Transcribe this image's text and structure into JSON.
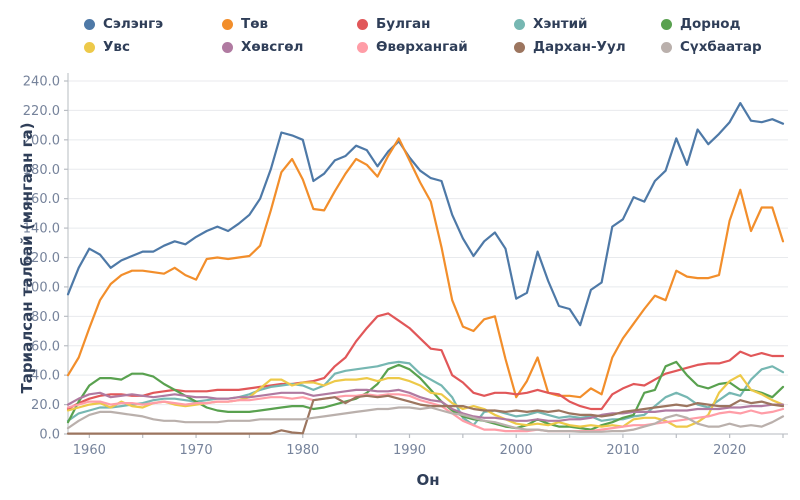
{
  "axes": {
    "y_title": "Тариалсан талбай (мянгаан га)",
    "x_title": "Он"
  },
  "style": {
    "grid_color": "#e8eaed",
    "spine_color": "#c3c7cc",
    "tick_color": "#b9bdc3",
    "tick_label_color": "#76839b",
    "text_color": "#2f3e58",
    "background": "#ffffff",
    "line_width": 2.2
  },
  "chart_data": {
    "type": "line",
    "title": "",
    "xlabel": "Он",
    "ylabel": "Тариалсан талбай (мянгаан га)",
    "x_range": [
      1958,
      2025
    ],
    "ylim": [
      0,
      240
    ],
    "x_major_ticks": [
      1960,
      1970,
      1980,
      1990,
      2000,
      2010,
      2020
    ],
    "x_minor_tick_step": 5,
    "y_ticks": [
      0,
      20,
      40,
      60,
      80,
      100,
      120,
      140,
      160,
      180,
      200,
      220,
      240
    ],
    "y_tick_labels": [
      "0.0",
      "20.0",
      "40.0",
      "60.0",
      "80.0",
      "100.0",
      "120.0",
      "140.0",
      "160.0",
      "180.0",
      "200.0",
      "220.0",
      "240.0"
    ],
    "grid": "horizontal",
    "legend_position": "top",
    "x": [
      1958,
      1959,
      1960,
      1961,
      1962,
      1963,
      1964,
      1965,
      1966,
      1967,
      1968,
      1969,
      1970,
      1971,
      1972,
      1973,
      1974,
      1975,
      1976,
      1977,
      1978,
      1979,
      1980,
      1981,
      1982,
      1983,
      1984,
      1985,
      1986,
      1987,
      1988,
      1989,
      1990,
      1991,
      1992,
      1993,
      1994,
      1995,
      1996,
      1997,
      1998,
      1999,
      2000,
      2001,
      2002,
      2003,
      2004,
      2005,
      2006,
      2007,
      2008,
      2009,
      2010,
      2011,
      2012,
      2013,
      2014,
      2015,
      2016,
      2017,
      2018,
      2019,
      2020,
      2021,
      2022,
      2023,
      2024,
      2025
    ],
    "series": [
      {
        "key": "selenge",
        "name": "Сэлэнгэ",
        "color": "#4E79A7",
        "values": [
          95,
          113,
          126,
          122,
          113,
          118,
          121,
          124,
          124,
          128,
          131,
          129,
          134,
          138,
          141,
          138,
          143,
          149,
          160,
          180,
          205,
          203,
          200,
          172,
          177,
          186,
          189,
          196,
          193,
          182,
          192,
          199,
          188,
          179,
          174,
          172,
          149,
          133,
          121,
          131,
          137,
          126,
          92,
          96,
          124,
          104,
          87,
          85,
          74,
          98,
          103,
          141,
          146,
          161,
          158,
          172,
          179,
          201,
          183,
          207,
          197,
          204,
          212,
          225,
          213,
          212,
          214,
          211
        ]
      },
      {
        "key": "tov",
        "name": "Төв",
        "color": "#F28E2B",
        "values": [
          40,
          52,
          72,
          91,
          102,
          108,
          111,
          111,
          110,
          109,
          113,
          108,
          105,
          119,
          120,
          119,
          120,
          121,
          128,
          152,
          178,
          187,
          173,
          153,
          152,
          165,
          177,
          187,
          183,
          175,
          189,
          201,
          186,
          171,
          158,
          127,
          91,
          73,
          70,
          78,
          80,
          51,
          25,
          36,
          52,
          28,
          26,
          26,
          25,
          31,
          27,
          52,
          65,
          75,
          85,
          94,
          91,
          111,
          107,
          106,
          106,
          108,
          145,
          166,
          138,
          154,
          154,
          131
        ]
      },
      {
        "key": "bulgan",
        "name": "Булган",
        "color": "#E15759",
        "values": [
          17,
          21,
          24,
          26,
          27,
          27,
          26,
          26,
          28,
          29,
          30,
          29,
          29,
          29,
          30,
          30,
          30,
          31,
          32,
          33,
          34,
          34,
          35,
          36,
          38,
          46,
          52,
          63,
          72,
          80,
          82,
          77,
          72,
          65,
          58,
          57,
          40,
          35,
          28,
          26,
          28,
          28,
          27,
          28,
          30,
          28,
          27,
          22,
          19,
          17,
          17,
          27,
          31,
          34,
          33,
          37,
          41,
          43,
          45,
          47,
          48,
          48,
          50,
          56,
          53,
          55,
          53,
          53
        ]
      },
      {
        "key": "khentii",
        "name": "Хэнтий",
        "color": "#76B7B2",
        "values": [
          9,
          14,
          16,
          18,
          18,
          19,
          20,
          21,
          23,
          24,
          24,
          23,
          22,
          23,
          24,
          24,
          25,
          27,
          30,
          32,
          33,
          34,
          33,
          30,
          33,
          41,
          43,
          44,
          45,
          46,
          48,
          49,
          48,
          41,
          37,
          33,
          25,
          11,
          6,
          15,
          16,
          14,
          12,
          13,
          15,
          13,
          11,
          12,
          11,
          12,
          9,
          10,
          10,
          12,
          13,
          19,
          25,
          28,
          25,
          20,
          18,
          23,
          28,
          26,
          37,
          44,
          46,
          42
        ]
      },
      {
        "key": "dornod",
        "name": "Дорнод",
        "color": "#59A14F",
        "values": [
          8,
          22,
          33,
          38,
          38,
          37,
          41,
          41,
          39,
          34,
          30,
          26,
          22,
          18,
          16,
          15,
          15,
          15,
          16,
          17,
          18,
          19,
          19,
          17,
          18,
          20,
          22,
          24,
          28,
          34,
          44,
          47,
          44,
          38,
          30,
          22,
          16,
          12,
          10,
          9,
          7,
          5,
          4,
          6,
          10,
          7,
          5,
          5,
          4,
          3,
          6,
          8,
          11,
          13,
          28,
          30,
          46,
          49,
          40,
          33,
          31,
          34,
          35,
          30,
          30,
          28,
          25,
          32
        ]
      },
      {
        "key": "uvs",
        "name": "Увс",
        "color": "#EDC949",
        "values": [
          16,
          18,
          20,
          21,
          18,
          22,
          19,
          18,
          21,
          22,
          20,
          19,
          20,
          21,
          22,
          22,
          23,
          25,
          31,
          37,
          37,
          33,
          35,
          35,
          33,
          36,
          37,
          37,
          38,
          36,
          38,
          38,
          36,
          33,
          28,
          27,
          21,
          17,
          19,
          17,
          13,
          10,
          7,
          6,
          7,
          6,
          8,
          6,
          5,
          6,
          5,
          6,
          5,
          10,
          11,
          11,
          9,
          5,
          5,
          8,
          13,
          28,
          36,
          40,
          30,
          27,
          23,
          20
        ]
      },
      {
        "key": "khovsgol",
        "name": "Хөвсгөл",
        "color": "#B07AA1",
        "values": [
          20,
          24,
          27,
          28,
          25,
          26,
          27,
          26,
          25,
          26,
          27,
          26,
          25,
          25,
          24,
          24,
          25,
          25,
          26,
          27,
          28,
          28,
          28,
          26,
          27,
          28,
          29,
          30,
          30,
          29,
          29,
          30,
          28,
          25,
          23,
          22,
          17,
          14,
          12,
          11,
          11,
          10,
          9,
          9,
          10,
          9,
          9,
          10,
          10,
          11,
          13,
          14,
          14,
          15,
          15,
          15,
          16,
          16,
          16,
          17,
          17,
          17,
          18,
          18,
          19,
          19,
          20,
          20
        ]
      },
      {
        "key": "uvurkhangai",
        "name": "Өвөрхангай",
        "color": "#FF9DA7",
        "values": [
          18,
          20,
          22,
          22,
          20,
          21,
          21,
          20,
          21,
          22,
          21,
          20,
          21,
          21,
          22,
          22,
          23,
          23,
          24,
          25,
          25,
          24,
          25,
          23,
          24,
          25,
          26,
          26,
          27,
          26,
          27,
          27,
          26,
          23,
          21,
          19,
          14,
          9,
          6,
          3,
          3,
          2,
          2,
          2,
          3,
          2,
          2,
          2,
          2,
          2,
          3,
          4,
          5,
          6,
          6,
          7,
          8,
          9,
          10,
          11,
          12,
          14,
          15,
          14,
          16,
          14,
          15,
          17
        ]
      },
      {
        "key": "darkhan-uul",
        "name": "Дархан-Уул",
        "color": "#9C755F",
        "values": [
          0.3,
          0.3,
          0.3,
          0.3,
          0.3,
          0.3,
          0.3,
          0.3,
          0.3,
          0.3,
          0.3,
          0.3,
          0.3,
          0.3,
          0.3,
          0.3,
          0.3,
          0.3,
          0.3,
          0.3,
          2.5,
          1,
          0.5,
          23,
          24,
          25,
          21,
          25,
          26,
          25,
          26,
          24,
          22,
          20,
          19,
          19,
          19,
          19,
          17,
          16,
          16,
          15,
          16,
          15,
          16,
          15,
          16,
          14,
          13,
          13,
          12,
          13,
          15,
          16,
          17,
          18,
          19,
          20,
          19,
          21,
          20,
          19,
          19,
          23,
          21,
          22,
          20,
          19
        ]
      },
      {
        "key": "sukhbaatar",
        "name": "Сүхбаатар",
        "color": "#BAB0AC",
        "values": [
          4,
          9,
          13,
          15,
          15,
          14,
          13,
          12,
          10,
          9,
          9,
          8,
          8,
          8,
          8,
          9,
          9,
          9,
          10,
          10,
          10,
          10,
          10,
          11,
          12,
          13,
          14,
          15,
          16,
          17,
          17,
          18,
          18,
          17,
          18,
          16,
          14,
          13,
          11,
          9,
          8,
          6,
          4,
          3,
          3,
          2,
          2,
          2,
          1.5,
          1.5,
          1.5,
          2,
          2,
          3,
          5,
          7,
          11,
          13,
          11,
          7,
          5,
          5,
          7,
          5,
          6,
          5,
          8,
          12
        ]
      }
    ]
  }
}
